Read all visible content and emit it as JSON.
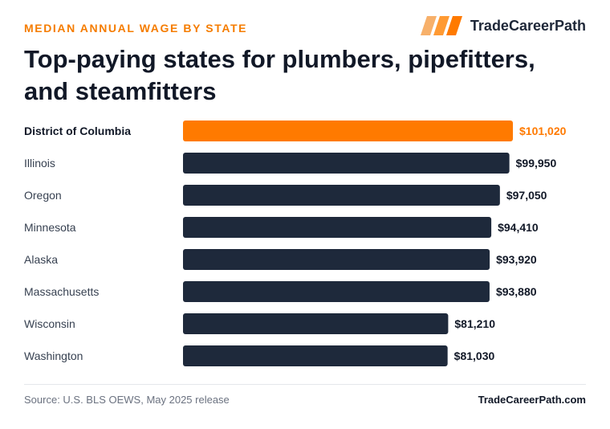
{
  "header": {
    "eyebrow": "MEDIAN ANNUAL WAGE BY STATE",
    "brand_name": "TradeCareerPath",
    "brand_icon": "stripes-logo-icon",
    "title": "Top-paying states for plumbers, pipefitters, and steamfitters"
  },
  "footer": {
    "source": "Source: U.S. BLS OEWS, May 2025 release",
    "brand_url": "TradeCareerPath.com"
  },
  "colors": {
    "accent": "#ff7a00",
    "bar": "#1e293b",
    "label": "#374151",
    "highlight_label": "#111827",
    "value": "#111827"
  },
  "chart_data": {
    "type": "bar",
    "orientation": "horizontal",
    "categories": [
      "District of Columbia",
      "Illinois",
      "Oregon",
      "Minnesota",
      "Alaska",
      "Massachusetts",
      "Wisconsin",
      "Washington"
    ],
    "values": [
      101020,
      99950,
      97050,
      94410,
      93920,
      93880,
      81210,
      81030
    ],
    "value_labels": [
      "$101,020",
      "$99,950",
      "$97,050",
      "$94,410",
      "$93,920",
      "$93,880",
      "$81,210",
      "$81,030"
    ],
    "highlight_index": 0,
    "xlim": [
      0,
      101020
    ],
    "grid": false,
    "legend": "none"
  }
}
